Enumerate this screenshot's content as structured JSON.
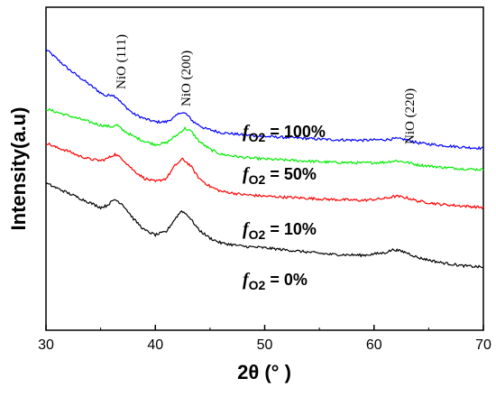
{
  "chart_data": {
    "type": "line",
    "xlabel": "2θ (° )",
    "ylabel": "Intensity(a.u)",
    "xlim": [
      30,
      70
    ],
    "x_ticks": [
      "30",
      "40",
      "50",
      "60",
      "70"
    ],
    "y_ticks_shown": false,
    "grid": false,
    "legend": "none",
    "peak_annotations": [
      {
        "text": "NiO (111)",
        "x": 37
      },
      {
        "text": "NiO (200)",
        "x": 43
      },
      {
        "text": "NiO (220)",
        "x": 62.5
      }
    ],
    "series": [
      {
        "label_prefix": "f",
        "label_sub": "O2",
        "label_value": " = 100%",
        "color": "#0000ff",
        "points": [
          [
            30,
            0.87
          ],
          [
            31,
            0.84
          ],
          [
            32,
            0.81
          ],
          [
            33,
            0.785
          ],
          [
            34,
            0.76
          ],
          [
            35,
            0.735
          ],
          [
            35.5,
            0.725
          ],
          [
            36,
            0.73
          ],
          [
            36.5,
            0.72
          ],
          [
            37,
            0.7
          ],
          [
            38,
            0.67
          ],
          [
            39,
            0.655
          ],
          [
            40,
            0.645
          ],
          [
            41,
            0.645
          ],
          [
            41.8,
            0.66
          ],
          [
            42.3,
            0.675
          ],
          [
            42.8,
            0.67
          ],
          [
            43.5,
            0.645
          ],
          [
            44.5,
            0.625
          ],
          [
            46,
            0.612
          ],
          [
            48,
            0.605
          ],
          [
            50,
            0.6
          ],
          [
            53,
            0.595
          ],
          [
            56,
            0.59
          ],
          [
            59,
            0.588
          ],
          [
            61,
            0.59
          ],
          [
            62,
            0.593
          ],
          [
            63,
            0.59
          ],
          [
            64,
            0.58
          ],
          [
            66,
            0.573
          ],
          [
            68,
            0.567
          ],
          [
            70,
            0.563
          ]
        ]
      },
      {
        "label_prefix": "f",
        "label_sub": "O2",
        "label_value": " = 50%",
        "color": "#00ee00",
        "points": [
          [
            30,
            0.685
          ],
          [
            31,
            0.675
          ],
          [
            32,
            0.665
          ],
          [
            33,
            0.655
          ],
          [
            34,
            0.645
          ],
          [
            35,
            0.635
          ],
          [
            36,
            0.63
          ],
          [
            36.5,
            0.635
          ],
          [
            37,
            0.62
          ],
          [
            38,
            0.6
          ],
          [
            39,
            0.585
          ],
          [
            40,
            0.575
          ],
          [
            41,
            0.58
          ],
          [
            42,
            0.605
          ],
          [
            42.7,
            0.625
          ],
          [
            43.3,
            0.615
          ],
          [
            44,
            0.585
          ],
          [
            45,
            0.56
          ],
          [
            46,
            0.545
          ],
          [
            48,
            0.535
          ],
          [
            50,
            0.53
          ],
          [
            53,
            0.525
          ],
          [
            56,
            0.52
          ],
          [
            59,
            0.518
          ],
          [
            61,
            0.52
          ],
          [
            62,
            0.525
          ],
          [
            63,
            0.52
          ],
          [
            64,
            0.512
          ],
          [
            66,
            0.505
          ],
          [
            68,
            0.5
          ],
          [
            70,
            0.497
          ]
        ]
      },
      {
        "label_prefix": "f",
        "label_sub": "O2",
        "label_value": " = 10%",
        "color": "#ff0000",
        "points": [
          [
            30,
            0.58
          ],
          [
            31,
            0.565
          ],
          [
            32,
            0.555
          ],
          [
            33,
            0.54
          ],
          [
            34,
            0.53
          ],
          [
            35,
            0.525
          ],
          [
            35.5,
            0.53
          ],
          [
            36.3,
            0.545
          ],
          [
            37,
            0.53
          ],
          [
            38,
            0.495
          ],
          [
            39,
            0.47
          ],
          [
            40,
            0.46
          ],
          [
            41,
            0.47
          ],
          [
            41.8,
            0.51
          ],
          [
            42.5,
            0.53
          ],
          [
            43.2,
            0.51
          ],
          [
            44,
            0.47
          ],
          [
            45,
            0.445
          ],
          [
            46,
            0.43
          ],
          [
            48,
            0.42
          ],
          [
            50,
            0.415
          ],
          [
            53,
            0.41
          ],
          [
            56,
            0.405
          ],
          [
            59,
            0.402
          ],
          [
            61,
            0.408
          ],
          [
            62,
            0.415
          ],
          [
            63,
            0.41
          ],
          [
            64,
            0.4
          ],
          [
            66,
            0.39
          ],
          [
            68,
            0.385
          ],
          [
            70,
            0.38
          ]
        ]
      },
      {
        "label_prefix": "f",
        "label_sub": "O2",
        "label_value": " = 0%",
        "color": "#000000",
        "points": [
          [
            30,
            0.455
          ],
          [
            31,
            0.44
          ],
          [
            32,
            0.425
          ],
          [
            33,
            0.41
          ],
          [
            34,
            0.395
          ],
          [
            35,
            0.38
          ],
          [
            35.5,
            0.385
          ],
          [
            36.3,
            0.405
          ],
          [
            37,
            0.39
          ],
          [
            38,
            0.345
          ],
          [
            39,
            0.31
          ],
          [
            40,
            0.295
          ],
          [
            41,
            0.305
          ],
          [
            41.8,
            0.345
          ],
          [
            42.4,
            0.37
          ],
          [
            43,
            0.355
          ],
          [
            44,
            0.31
          ],
          [
            45,
            0.285
          ],
          [
            46,
            0.27
          ],
          [
            48,
            0.26
          ],
          [
            50,
            0.255
          ],
          [
            53,
            0.245
          ],
          [
            56,
            0.235
          ],
          [
            59,
            0.232
          ],
          [
            61,
            0.24
          ],
          [
            61.8,
            0.25
          ],
          [
            63,
            0.24
          ],
          [
            64,
            0.225
          ],
          [
            66,
            0.21
          ],
          [
            68,
            0.2
          ],
          [
            70,
            0.195
          ]
        ]
      }
    ]
  }
}
